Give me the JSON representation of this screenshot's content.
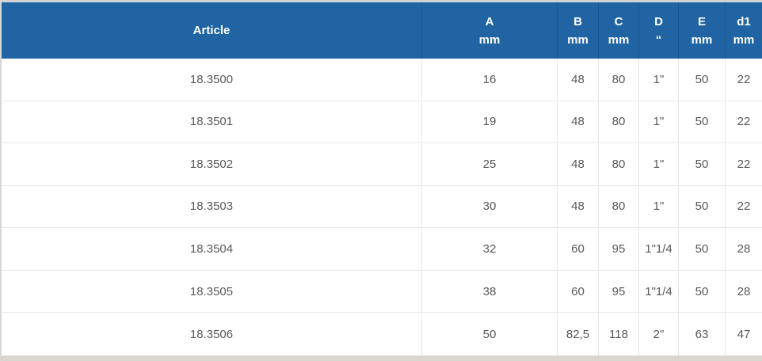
{
  "chart_data": {
    "type": "table",
    "title": "",
    "header": [
      {
        "label": "Article",
        "unit": ""
      },
      {
        "label": "A",
        "unit": "mm"
      },
      {
        "label": "B",
        "unit": "mm"
      },
      {
        "label": "C",
        "unit": "mm"
      },
      {
        "label": "D",
        "unit": "“"
      },
      {
        "label": "E",
        "unit": "mm"
      },
      {
        "label": "d1",
        "unit": "mm"
      }
    ],
    "rows": [
      [
        "18.3500",
        "16",
        "48",
        "80",
        "1\"",
        "50",
        "22"
      ],
      [
        "18.3501",
        "19",
        "48",
        "80",
        "1\"",
        "50",
        "22"
      ],
      [
        "18.3502",
        "25",
        "48",
        "80",
        "1\"",
        "50",
        "22"
      ],
      [
        "18.3503",
        "30",
        "48",
        "80",
        "1\"",
        "50",
        "22"
      ],
      [
        "18.3504",
        "32",
        "60",
        "95",
        "1\"1/4",
        "50",
        "28"
      ],
      [
        "18.3505",
        "38",
        "60",
        "95",
        "1\"1/4",
        "50",
        "28"
      ],
      [
        "18.3506",
        "50",
        "82,5",
        "118",
        "2\"",
        "63",
        "47"
      ]
    ],
    "colors": {
      "header_bg": "#2064a4",
      "header_text": "#ffffff",
      "header_divider": "#1a578f",
      "body_text": "#58585a",
      "grid_line": "#e7e7e7",
      "frame_top": "#d3d3d3",
      "frame_left": "#d8d8d8",
      "frame_bottom": "#d9d6d0"
    }
  }
}
